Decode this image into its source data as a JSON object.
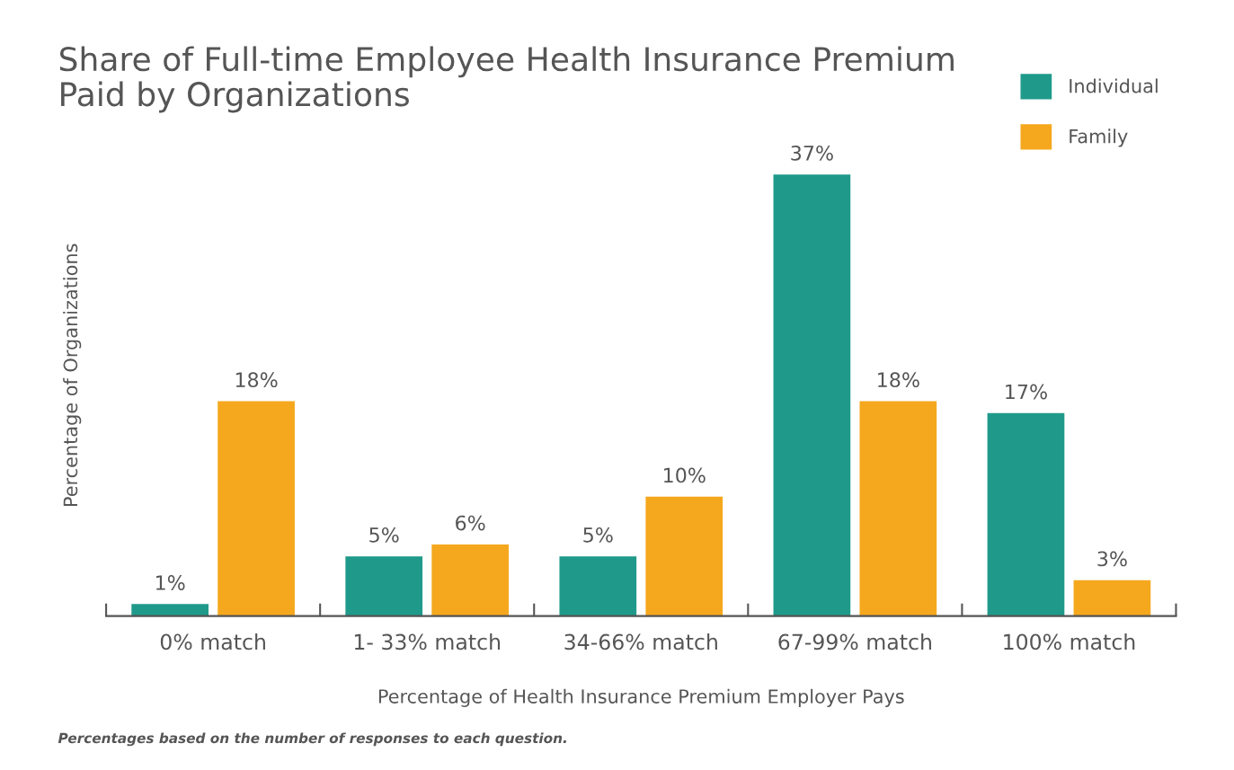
{
  "chart_data": {
    "type": "bar",
    "title": "Share of Full-time Employee Health Insurance Premium\nPaid by Organizations",
    "xlabel": "Percentage of Health Insurance Premium Employer Pays",
    "ylabel": "Percentage of Organizations",
    "categories": [
      "0% match",
      "1- 33% match",
      "34-66% match",
      "67-99% match",
      "100% match"
    ],
    "series": [
      {
        "name": "Individual",
        "color": "#1f9a8a",
        "values": [
          1,
          5,
          5,
          37,
          17
        ],
        "value_labels": [
          "1%",
          "5%",
          "5%",
          "37%",
          "17%"
        ]
      },
      {
        "name": "Family",
        "color": "#f5a81e",
        "values": [
          18,
          6,
          10,
          18,
          3
        ],
        "value_labels": [
          "18%",
          "6%",
          "10%",
          "18%",
          "3%"
        ]
      }
    ],
    "legend": "top right",
    "grid": false,
    "annotations": [
      "Percentages based on the number of responses to each question."
    ]
  }
}
